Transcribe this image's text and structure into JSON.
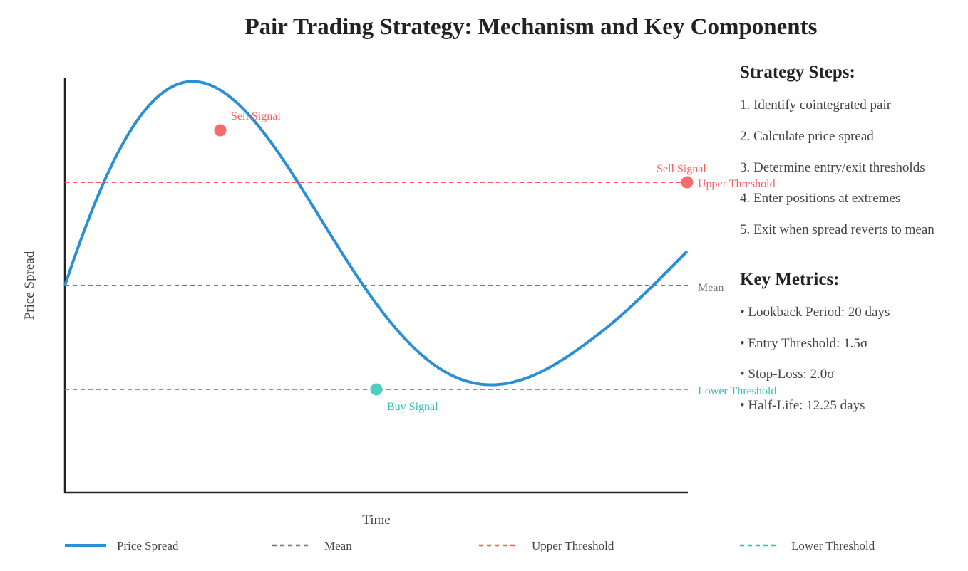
{
  "title": "Pair Trading Strategy: Mechanism and Key Components",
  "chart": {
    "xlabel": "Time",
    "ylabel": "Price Spread",
    "lines": {
      "mean": "Mean",
      "upper": "Upper Threshold",
      "lower": "Lower Threshold"
    },
    "signals": {
      "sell_top": "Sell Signal",
      "sell_right": "Sell Signal",
      "buy": "Buy Signal"
    },
    "colors": {
      "spread": "#2b8fd6",
      "mean": "#777777",
      "upper": "#ff5a5f",
      "lower": "#2cc3b4",
      "sell_dot": "#f76a6e",
      "buy_dot": "#4fcdbf"
    }
  },
  "legend": {
    "spread": "Price Spread",
    "mean": "Mean",
    "upper": "Upper Threshold",
    "lower": "Lower Threshold"
  },
  "steps": {
    "heading": "Strategy Steps:",
    "items": [
      "1. Identify cointegrated pair",
      "2. Calculate price spread",
      "3. Determine entry/exit thresholds",
      "4. Enter positions at extremes",
      "5. Exit when spread reverts to mean"
    ]
  },
  "metrics": {
    "heading": "Key Metrics:",
    "items": [
      "• Lookback Period: 20 days",
      "• Entry Threshold: 1.5σ",
      "• Stop-Loss: 2.0σ",
      "• Half-Life: 12.25 days"
    ]
  }
}
